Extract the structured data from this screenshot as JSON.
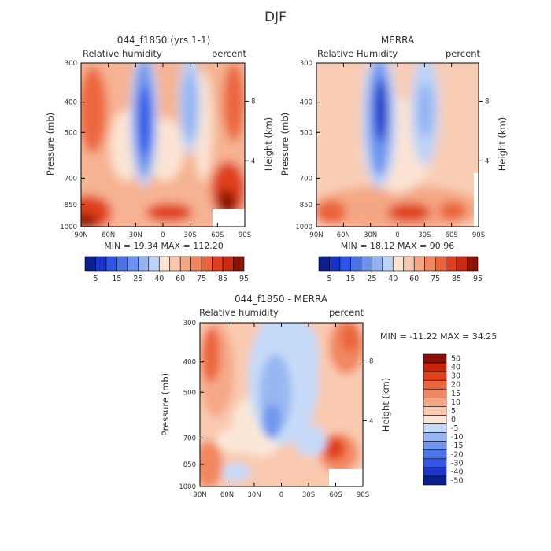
{
  "figure_title": "DJF",
  "palettes": {
    "abs": [
      "#0b1f8f",
      "#1833c8",
      "#2c55e6",
      "#4a73ea",
      "#6a92ee",
      "#92b2f2",
      "#bcd3f7",
      "#fbe4d3",
      "#f8c7ad",
      "#f4a784",
      "#f0855f",
      "#ea6339",
      "#e03f1d",
      "#cc2a10",
      "#8c1206"
    ],
    "diff": [
      "#0a1f8e",
      "#1c36c7",
      "#3257e6",
      "#4e76ea",
      "#7097ee",
      "#98b7f2",
      "#c5daf8",
      "#fbe7d8",
      "#f9c9b0",
      "#f5a887",
      "#f18862",
      "#ec663d",
      "#e2401c",
      "#c8240c",
      "#8d1108"
    ]
  },
  "chart_data": [
    {
      "type": "heatmap",
      "title": "044_f1850 (yrs 1-1)",
      "left_label": "Relative humidity",
      "right_label": "percent",
      "ylabel": "Pressure (mb)",
      "y2label": "Height (km)",
      "x_ticks": [
        "90N",
        "60N",
        "30N",
        "0",
        "30S",
        "60S",
        "90S"
      ],
      "y_ticks": [
        300,
        400,
        500,
        700,
        850,
        1000
      ],
      "y2_ticks": [
        "8",
        "4"
      ],
      "ylim": [
        1000,
        300
      ],
      "min_max_text": "MIN =  19.34   MAX = 112.20",
      "min": 19.34,
      "max": 112.2,
      "colorbar": {
        "orientation": "horizontal",
        "labels": [
          "5",
          "15",
          "25",
          "40",
          "60",
          "75",
          "85",
          "95"
        ]
      }
    },
    {
      "type": "heatmap",
      "title": "MERRA",
      "left_label": "Relative Humidity",
      "right_label": "percent",
      "ylabel": "Pressure (mb)",
      "y2label": "Height (km)",
      "x_ticks": [
        "90N",
        "60N",
        "30N",
        "0",
        "30S",
        "60S",
        "90S"
      ],
      "y_ticks": [
        300,
        400,
        500,
        700,
        850,
        1000
      ],
      "y2_ticks": [
        "8",
        "4"
      ],
      "ylim": [
        1000,
        300
      ],
      "min_max_text": "MIN =  18.12   MAX =  90.96",
      "min": 18.12,
      "max": 90.96,
      "colorbar": {
        "orientation": "horizontal",
        "labels": [
          "5",
          "15",
          "25",
          "40",
          "60",
          "75",
          "85",
          "95"
        ]
      }
    },
    {
      "type": "heatmap",
      "title": "044_f1850 - MERRA",
      "left_label": "Relative humidity",
      "right_label": "percent",
      "ylabel": "Pressure (mb)",
      "y2label": "Height (km)",
      "x_ticks": [
        "90N",
        "60N",
        "30N",
        "0",
        "30S",
        "60S",
        "90S"
      ],
      "y_ticks": [
        300,
        400,
        500,
        700,
        850,
        1000
      ],
      "y2_ticks": [
        "8",
        "4"
      ],
      "ylim": [
        1000,
        300
      ],
      "min_max_text": "MIN = -11.22   MAX =  34.25",
      "min": -11.22,
      "max": 34.25,
      "colorbar": {
        "orientation": "vertical",
        "labels": [
          "50",
          "40",
          "30",
          "20",
          "15",
          "10",
          "5",
          "0",
          "-5",
          "-10",
          "-15",
          "-20",
          "-30",
          "-40",
          "-50"
        ]
      }
    }
  ]
}
